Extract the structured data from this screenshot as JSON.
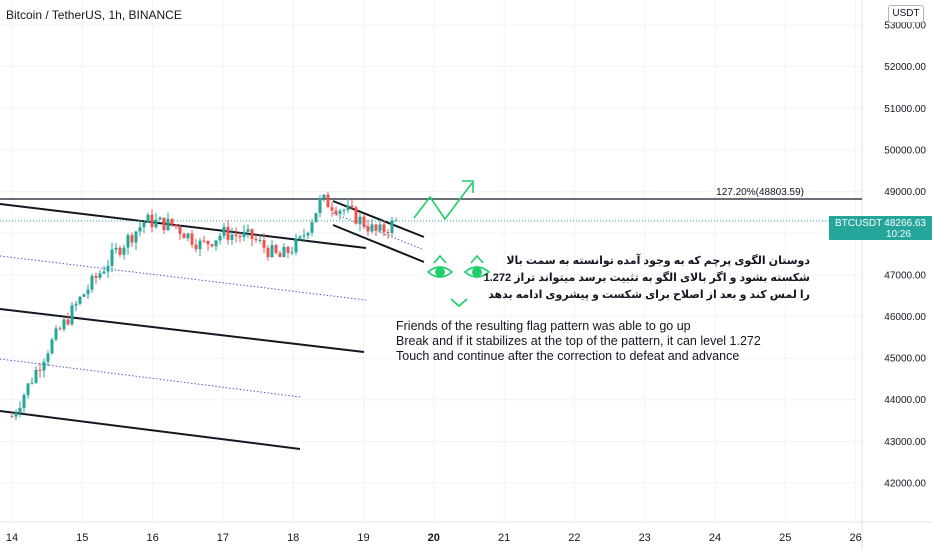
{
  "header": {
    "title": "Bitcoin / TetherUS, 1h, BINANCE"
  },
  "currency_button": {
    "label": "USDT"
  },
  "price_tag": {
    "symbol": "BTCUSDT",
    "price": "48266.63",
    "countdown": "10:26"
  },
  "fib_label": "127.20%(48803.59)",
  "colors": {
    "up": "#26a69a",
    "down": "#ef5350",
    "accent_green": "#1fcf6a",
    "dotted_blue": "#4a5ec7"
  },
  "annotations": {
    "persian": [
      "دوستان الگوی پرچم که به وجود آمده توانسته به سمت بالا",
      "شکسته بشود و اگر بالای الگو به تثبیت برسد میتواند تراز 1.272",
      "را لمس کند و بعد از اصلاح برای شکست و پیشروی ادامه بدهد"
    ],
    "english": [
      "Friends of the resulting flag pattern was able to go up",
      "Break and if it stabilizes at the top of the pattern, it can level 1.272",
      "Touch and continue after the correction to defeat and advance"
    ]
  },
  "chart_data": {
    "type": "candlestick",
    "title": "Bitcoin / TetherUS, 1h, BINANCE",
    "x_ticks": [
      "14",
      "15",
      "16",
      "17",
      "18",
      "19",
      "20",
      "21",
      "22",
      "23",
      "24",
      "25",
      "26"
    ],
    "y_ticks": [
      "53000.00",
      "52000.00",
      "51000.00",
      "50000.00",
      "49000.00",
      "48000.00",
      "47000.00",
      "46000.00",
      "45000.00",
      "44000.00",
      "43000.00",
      "42000.00"
    ],
    "ylim": [
      41500,
      53300
    ],
    "last_price": 48266.63,
    "fib_level": 48803.59,
    "candles_close_path": [
      [
        "14",
        43600
      ],
      [
        "14.5",
        45200
      ],
      [
        "15",
        46500
      ],
      [
        "15.5",
        47600
      ],
      [
        "15.9",
        48300
      ],
      [
        "16.3",
        48200
      ],
      [
        "16.7",
        47700
      ],
      [
        "17.0",
        48000
      ],
      [
        "17.4",
        47900
      ],
      [
        "17.8",
        47400
      ],
      [
        "18.1",
        47800
      ],
      [
        "18.4",
        48800
      ],
      [
        "18.8",
        48500
      ],
      [
        "19.2",
        48000
      ],
      [
        "19.5",
        48300
      ]
    ],
    "grid": true,
    "legend": "none"
  }
}
